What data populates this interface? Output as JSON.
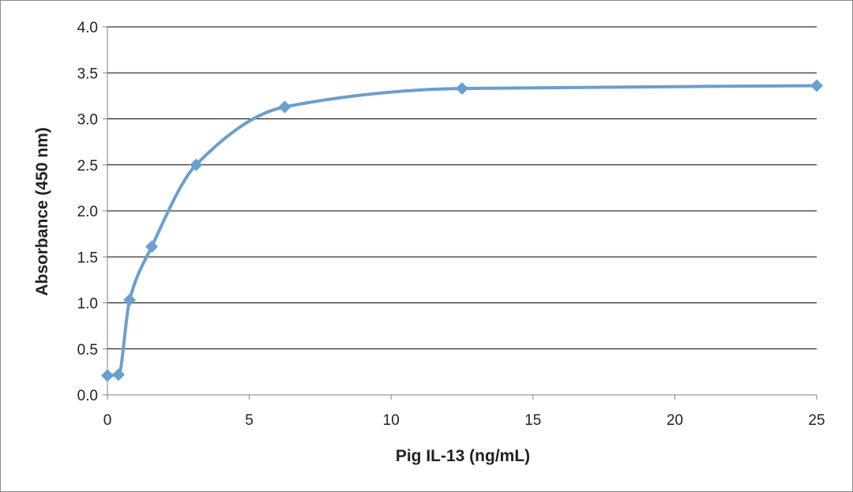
{
  "chart_data": {
    "type": "line",
    "title": "",
    "xlabel": "Pig IL-13 (ng/mL)",
    "ylabel": "Absorbance  (450  nm)",
    "xlim": [
      0,
      25
    ],
    "ylim": [
      0,
      4.0
    ],
    "x_ticks": [
      "0",
      "5",
      "10",
      "15",
      "20",
      "25"
    ],
    "y_ticks": [
      "0.0",
      "0.5",
      "1.0",
      "1.5",
      "2.0",
      "2.5",
      "3.0",
      "3.5",
      "4.0"
    ],
    "grid": "horizontal",
    "legend": "none",
    "series": [
      {
        "x": [
          0,
          0.39,
          0.78,
          1.56,
          3.125,
          6.25,
          12.5,
          25
        ],
        "y": [
          0.21,
          0.22,
          1.03,
          1.61,
          2.5,
          3.13,
          3.33,
          3.36
        ],
        "color": "#6a9fcf",
        "marker": "diamond",
        "smooth": true
      }
    ]
  }
}
